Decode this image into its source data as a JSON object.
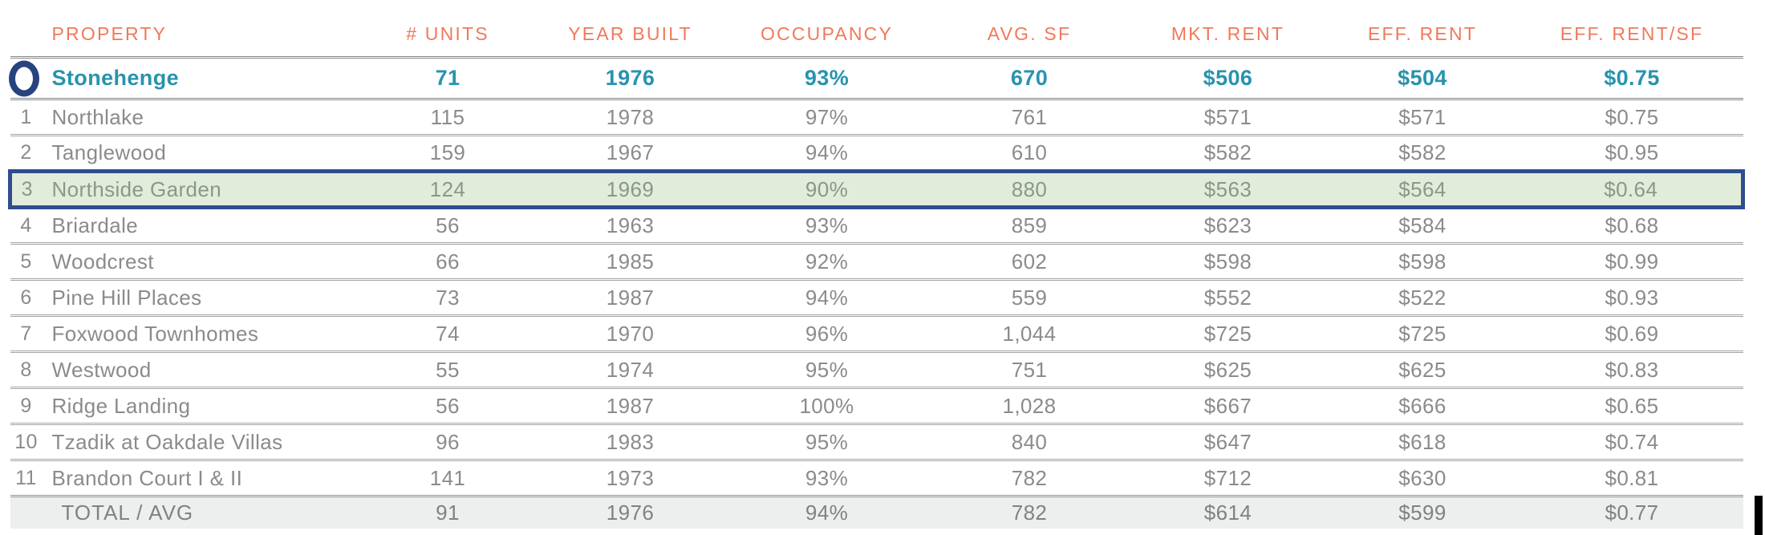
{
  "table": {
    "title_semantic": "rent-comparables-table",
    "columns": [
      {
        "key": "rank",
        "label": ""
      },
      {
        "key": "property",
        "label": "PROPERTY"
      },
      {
        "key": "units",
        "label": "# UNITS"
      },
      {
        "key": "year_built",
        "label": "YEAR BUILT"
      },
      {
        "key": "occupancy",
        "label": "OCCUPANCY"
      },
      {
        "key": "avg_sf",
        "label": "AVG. SF"
      },
      {
        "key": "mkt_rent",
        "label": "MKT. RENT"
      },
      {
        "key": "eff_rent",
        "label": "EFF. RENT"
      },
      {
        "key": "eff_rent_sf",
        "label": "EFF. RENT/SF"
      }
    ],
    "subject_row": {
      "marker": "circle-outline",
      "property": "Stonehenge",
      "units": "71",
      "year_built": "1976",
      "occupancy": "93%",
      "avg_sf": "670",
      "mkt_rent": "$506",
      "eff_rent": "$504",
      "eff_rent_sf": "$0.75"
    },
    "rows": [
      {
        "rank": "1",
        "property": "Northlake",
        "units": "115",
        "year_built": "1978",
        "occupancy": "97%",
        "avg_sf": "761",
        "mkt_rent": "$571",
        "eff_rent": "$571",
        "eff_rent_sf": "$0.75",
        "highlighted": false
      },
      {
        "rank": "2",
        "property": "Tanglewood",
        "units": "159",
        "year_built": "1967",
        "occupancy": "94%",
        "avg_sf": "610",
        "mkt_rent": "$582",
        "eff_rent": "$582",
        "eff_rent_sf": "$0.95",
        "highlighted": false
      },
      {
        "rank": "3",
        "property": "Northside Garden",
        "units": "124",
        "year_built": "1969",
        "occupancy": "90%",
        "avg_sf": "880",
        "mkt_rent": "$563",
        "eff_rent": "$564",
        "eff_rent_sf": "$0.64",
        "highlighted": true
      },
      {
        "rank": "4",
        "property": "Briardale",
        "units": "56",
        "year_built": "1963",
        "occupancy": "93%",
        "avg_sf": "859",
        "mkt_rent": "$623",
        "eff_rent": "$584",
        "eff_rent_sf": "$0.68",
        "highlighted": false
      },
      {
        "rank": "5",
        "property": "Woodcrest",
        "units": "66",
        "year_built": "1985",
        "occupancy": "92%",
        "avg_sf": "602",
        "mkt_rent": "$598",
        "eff_rent": "$598",
        "eff_rent_sf": "$0.99",
        "highlighted": false
      },
      {
        "rank": "6",
        "property": "Pine Hill Places",
        "units": "73",
        "year_built": "1987",
        "occupancy": "94%",
        "avg_sf": "559",
        "mkt_rent": "$552",
        "eff_rent": "$522",
        "eff_rent_sf": "$0.93",
        "highlighted": false
      },
      {
        "rank": "7",
        "property": "Foxwood Townhomes",
        "units": "74",
        "year_built": "1970",
        "occupancy": "96%",
        "avg_sf": "1,044",
        "mkt_rent": "$725",
        "eff_rent": "$725",
        "eff_rent_sf": "$0.69",
        "highlighted": false
      },
      {
        "rank": "8",
        "property": "Westwood",
        "units": "55",
        "year_built": "1974",
        "occupancy": "95%",
        "avg_sf": "751",
        "mkt_rent": "$625",
        "eff_rent": "$625",
        "eff_rent_sf": "$0.83",
        "highlighted": false
      },
      {
        "rank": "9",
        "property": "Ridge Landing",
        "units": "56",
        "year_built": "1987",
        "occupancy": "100%",
        "avg_sf": "1,028",
        "mkt_rent": "$667",
        "eff_rent": "$666",
        "eff_rent_sf": "$0.65",
        "highlighted": false
      },
      {
        "rank": "10",
        "property": "Tzadik at Oakdale Villas",
        "units": "96",
        "year_built": "1983",
        "occupancy": "95%",
        "avg_sf": "840",
        "mkt_rent": "$647",
        "eff_rent": "$618",
        "eff_rent_sf": "$0.74",
        "highlighted": false
      },
      {
        "rank": "11",
        "property": "Brandon Court I & II",
        "units": "141",
        "year_built": "1973",
        "occupancy": "93%",
        "avg_sf": "782",
        "mkt_rent": "$712",
        "eff_rent": "$630",
        "eff_rent_sf": "$0.81",
        "highlighted": false
      }
    ],
    "total_row": {
      "property": "TOTAL / AVG",
      "units": "91",
      "year_built": "1976",
      "occupancy": "94%",
      "avg_sf": "782",
      "mkt_rent": "$614",
      "eff_rent": "$599",
      "eff_rent_sf": "$0.77"
    }
  },
  "colors": {
    "header_text": "#F1785A",
    "subject_text": "#2893AE",
    "subject_marker": "#27437F",
    "highlight_bg": "#E2ECDA",
    "highlight_border": "#2E4E8E",
    "highlight_text": "#8A9887",
    "row_text": "#898B8D",
    "total_bg": "#EDEEEE",
    "total_text": "#7F8284",
    "separator_line": "#A2A4A6"
  }
}
